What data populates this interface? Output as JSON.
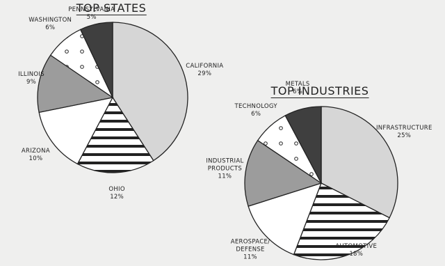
{
  "chart_data": [
    {
      "type": "pie",
      "title": "TOP STATES",
      "categories": [
        "CALIFORNIA",
        "OHIO",
        "ARIZONA",
        "ILLINOIS",
        "WASHINGTON",
        "PENNSYLVANIA"
      ],
      "values": [
        29,
        12,
        10,
        9,
        6,
        5
      ],
      "value_labels": [
        "29%",
        "12%",
        "10%",
        "9%",
        "6%",
        "5%"
      ],
      "colors": [
        "#d6d6d6",
        "stripes",
        "#ffffff",
        "#9c9c9c",
        "dots",
        "#3f3f3f"
      ]
    },
    {
      "type": "pie",
      "title": "TOP INDUSTRIES",
      "categories": [
        "INFRASTRUCTURE",
        "AUTOMOTIVE",
        "AEROSPACE/ DEFENSE",
        "INDUSTRIAL PRODUCTS",
        "TECHNOLOGY",
        "METALS"
      ],
      "values": [
        25,
        18,
        11,
        11,
        6,
        6
      ],
      "value_labels": [
        "25%",
        "18%",
        "11%",
        "11%",
        "6%",
        "6%"
      ],
      "colors": [
        "#d6d6d6",
        "stripes",
        "#ffffff",
        "#9c9c9c",
        "dots",
        "#3f3f3f"
      ]
    }
  ]
}
